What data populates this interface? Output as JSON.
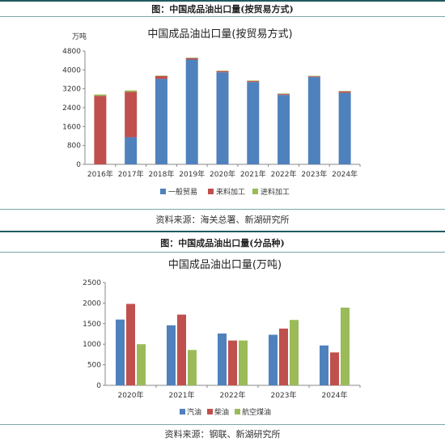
{
  "fig1": {
    "caption": "图：中国成品油出口量(按贸易方式)",
    "source": "资料来源：海关总署、新湖研究所"
  },
  "fig2": {
    "caption": "图：中国成品油出口量(分品种)",
    "source": "资料来源：钢联、新湖研究所"
  },
  "chart_data": [
    {
      "type": "bar",
      "stacked": true,
      "title": "中国成品油出口量(按贸易方式)",
      "unit": "万吨",
      "categories": [
        "2016年",
        "2017年",
        "2018年",
        "2019年",
        "2020年",
        "2021年",
        "2022年",
        "2023年",
        "2024年"
      ],
      "series": [
        {
          "name": "一般贸易",
          "color": "#4f81bd",
          "values": [
            0,
            1150,
            3620,
            4440,
            3900,
            3490,
            2940,
            3700,
            3030
          ]
        },
        {
          "name": "来料加工",
          "color": "#c0504d",
          "values": [
            2900,
            1920,
            120,
            60,
            50,
            40,
            40,
            30,
            60
          ]
        },
        {
          "name": "进料加工",
          "color": "#9bbb59",
          "values": [
            60,
            60,
            20,
            20,
            20,
            20,
            20,
            20,
            20
          ]
        }
      ],
      "yticks": [
        "0",
        "800",
        "1600",
        "2400",
        "3200",
        "4000",
        "4800"
      ],
      "ylim": [
        0,
        4800
      ],
      "grid": false,
      "legend": "bottom"
    },
    {
      "type": "bar",
      "stacked": false,
      "title": "中国成品油出口量(万吨)",
      "categories": [
        "2020年",
        "2021年",
        "2022年",
        "2023年",
        "2024年"
      ],
      "series": [
        {
          "name": "汽油",
          "color": "#4f81bd",
          "values": [
            1600,
            1460,
            1260,
            1230,
            970
          ]
        },
        {
          "name": "柴油",
          "color": "#c0504d",
          "values": [
            1980,
            1720,
            1090,
            1380,
            800
          ]
        },
        {
          "name": "航空煤油",
          "color": "#9bbb59",
          "values": [
            1000,
            860,
            1090,
            1590,
            1890
          ]
        }
      ],
      "yticks": [
        "0",
        "500",
        "1000",
        "1500",
        "2000",
        "2500"
      ],
      "ylim": [
        0,
        2500
      ],
      "grid": false,
      "legend": "bottom"
    }
  ]
}
